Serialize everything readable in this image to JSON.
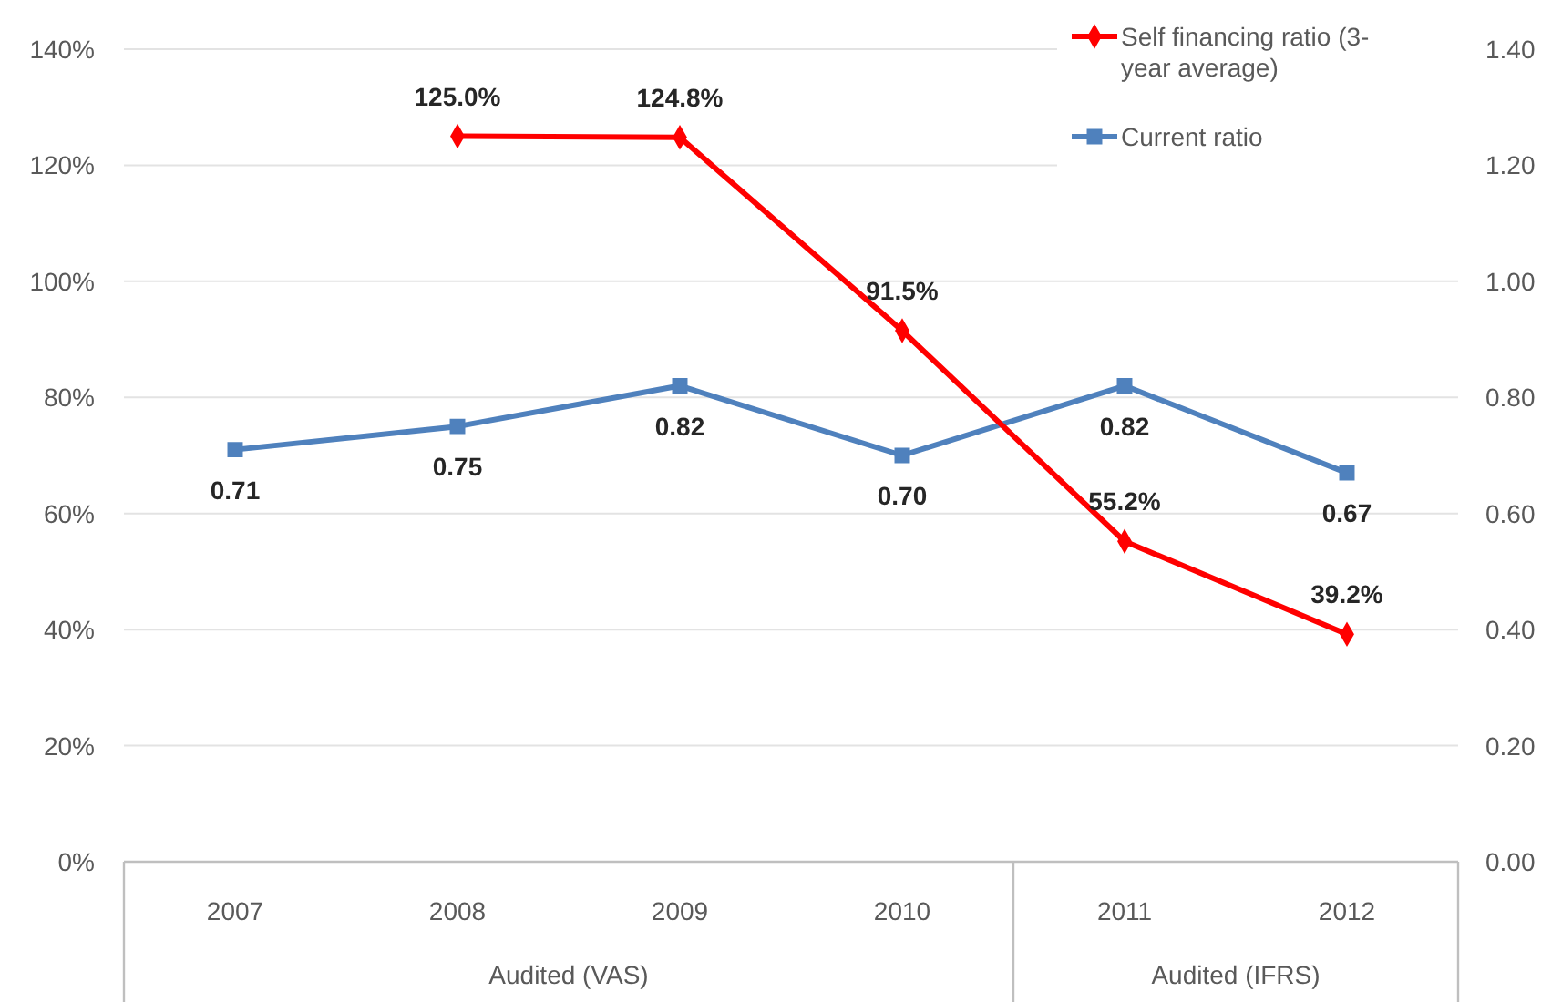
{
  "chart_data": {
    "type": "line",
    "categories": [
      "2007",
      "2008",
      "2009",
      "2010",
      "2011",
      "2012"
    ],
    "series": [
      {
        "name": "Self financing ratio (3-year average)",
        "color": "#ff0000",
        "marker": "diamond",
        "values": [
          null,
          125.0,
          124.8,
          91.5,
          55.2,
          39.2
        ],
        "value_labels": [
          null,
          "125.0%",
          "124.8%",
          "91.5%",
          "55.2%",
          "39.2%"
        ]
      },
      {
        "name": "Current ratio",
        "color": "#4f81bd",
        "marker": "square",
        "axis": "y2",
        "values": [
          0.71,
          0.75,
          0.82,
          0.7,
          0.82,
          0.67
        ],
        "value_labels": [
          "0.71",
          "0.75",
          "0.82",
          "0.70",
          "0.82",
          "0.67"
        ]
      }
    ],
    "ylim": [
      0,
      140
    ],
    "yticks": [
      {
        "value": 0,
        "label": "0%"
      },
      {
        "value": 20,
        "label": "20%"
      },
      {
        "value": 40,
        "label": "40%"
      },
      {
        "value": 60,
        "label": "60%"
      },
      {
        "value": 80,
        "label": "80%"
      },
      {
        "value": 100,
        "label": "100%"
      },
      {
        "value": 120,
        "label": "120%"
      },
      {
        "value": 140,
        "label": "140%"
      }
    ],
    "y2lim": [
      0,
      1.4
    ],
    "y2ticks": [
      {
        "value": 0,
        "label": "0.00"
      },
      {
        "value": 0.2,
        "label": "0.20"
      },
      {
        "value": 0.4,
        "label": "0.40"
      },
      {
        "value": 0.6,
        "label": "0.60"
      },
      {
        "value": 0.8,
        "label": "0.80"
      },
      {
        "value": 1.0,
        "label": "1.00"
      },
      {
        "value": 1.2,
        "label": "1.20"
      },
      {
        "value": 1.4,
        "label": "1.40"
      }
    ],
    "grid": "y",
    "legend": "top right",
    "annotations": [
      "Audited (VAS)",
      "Audited (IFRS)"
    ]
  }
}
